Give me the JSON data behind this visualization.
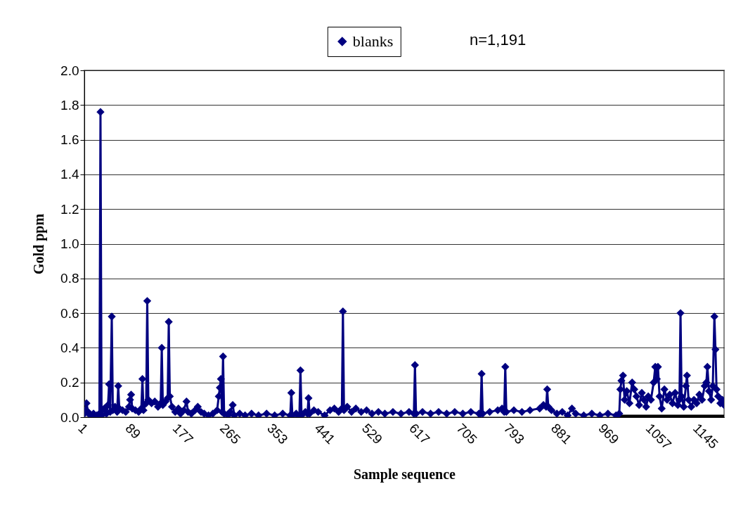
{
  "chart_data": {
    "type": "line",
    "xlabel": "Sample sequence",
    "ylabel": "Gold ppm",
    "annotations": [
      "n=1,191"
    ],
    "xlim": [
      1,
      1191
    ],
    "xticks": [
      1,
      89,
      177,
      265,
      353,
      441,
      529,
      617,
      705,
      793,
      881,
      969,
      1057,
      1145
    ],
    "ylim": [
      0,
      2
    ],
    "yticks": [
      {
        "value": 0,
        "label": "0.0"
      },
      0.2,
      0.4,
      0.6,
      0.8,
      {
        "value": 1,
        "label": "1.0"
      },
      1.2,
      1.4,
      1.6,
      1.8,
      {
        "value": 2,
        "label": "2.0"
      }
    ],
    "grid": "y",
    "legend": "top",
    "marker": "diamond",
    "line_style": "solid",
    "series": [
      {
        "color": "#000000",
        "marker": "none",
        "x": [
          997,
          1191
        ],
        "values": [
          0,
          0
        ]
      },
      {
        "name": "blanks",
        "color": "#000080",
        "x": [
          1,
          3,
          5,
          8,
          12,
          18,
          24,
          29,
          31,
          33,
          38,
          42,
          45,
          47,
          49,
          52,
          54,
          58,
          62,
          64,
          66,
          72,
          78,
          84,
          86,
          88,
          90,
          96,
          102,
          107,
          109,
          111,
          116,
          118,
          120,
          126,
          132,
          138,
          143,
          145,
          147,
          152,
          156,
          158,
          160,
          164,
          170,
          176,
          180,
          186,
          191,
          194,
          200,
          207,
          212,
          218,
          224,
          232,
          240,
          248,
          251,
          253,
          255,
          257,
          259,
          261,
          268,
          272,
          277,
          280,
          290,
          300,
          312,
          325,
          340,
          355,
          370,
          384,
          386,
          388,
          395,
          401,
          403,
          405,
          412,
          416,
          418,
          420,
          428,
          436,
          448,
          458,
          466,
          474,
          480,
          482,
          484,
          490,
          498,
          506,
          516,
          526,
          536,
          548,
          560,
          575,
          590,
          605,
          614,
          616,
          618,
          630,
          645,
          660,
          675,
          690,
          705,
          720,
          735,
          738,
          740,
          742,
          755,
          770,
          778,
          782,
          784,
          786,
          800,
          815,
          830,
          848,
          855,
          860,
          862,
          864,
          870,
          880,
          890,
          900,
          908,
          915,
          930,
          945,
          960,
          975,
          990,
          996,
          998,
          1000,
          1003,
          1006,
          1010,
          1015,
          1020,
          1024,
          1028,
          1033,
          1038,
          1042,
          1046,
          1050,
          1055,
          1060,
          1063,
          1066,
          1068,
          1071,
          1075,
          1080,
          1085,
          1090,
          1095,
          1100,
          1105,
          1108,
          1110,
          1112,
          1116,
          1120,
          1122,
          1125,
          1130,
          1135,
          1140,
          1145,
          1150,
          1155,
          1158,
          1160,
          1163,
          1167,
          1170,
          1173,
          1175,
          1177,
          1180,
          1184,
          1188,
          1191
        ],
        "values": [
          0.02,
          0.04,
          0.08,
          0.03,
          0.01,
          0.02,
          0.01,
          0.02,
          1.76,
          0.01,
          0.05,
          0.02,
          0.07,
          0.19,
          0.03,
          0.58,
          0.04,
          0.06,
          0.03,
          0.18,
          0.05,
          0.04,
          0.03,
          0.06,
          0.1,
          0.13,
          0.05,
          0.04,
          0.03,
          0.05,
          0.22,
          0.04,
          0.08,
          0.67,
          0.1,
          0.08,
          0.09,
          0.06,
          0.08,
          0.4,
          0.07,
          0.09,
          0.11,
          0.55,
          0.12,
          0.06,
          0.03,
          0.05,
          0.02,
          0.04,
          0.09,
          0.03,
          0.02,
          0.04,
          0.06,
          0.03,
          0.02,
          0.01,
          0.02,
          0.04,
          0.12,
          0.17,
          0.22,
          0.03,
          0.35,
          0.02,
          0.01,
          0.03,
          0.07,
          0.01,
          0.02,
          0.01,
          0.02,
          0.01,
          0.02,
          0.01,
          0.02,
          0.01,
          0.14,
          0.01,
          0.02,
          0.01,
          0.27,
          0.01,
          0.03,
          0.02,
          0.11,
          0.02,
          0.04,
          0.03,
          0.01,
          0.04,
          0.05,
          0.03,
          0.05,
          0.61,
          0.04,
          0.06,
          0.03,
          0.05,
          0.03,
          0.04,
          0.02,
          0.03,
          0.02,
          0.03,
          0.02,
          0.03,
          0.02,
          0.3,
          0.02,
          0.03,
          0.02,
          0.03,
          0.02,
          0.03,
          0.02,
          0.03,
          0.02,
          0.02,
          0.25,
          0.02,
          0.03,
          0.04,
          0.05,
          0.03,
          0.29,
          0.03,
          0.04,
          0.03,
          0.04,
          0.05,
          0.07,
          0.06,
          0.16,
          0.06,
          0.04,
          0.02,
          0.03,
          0.01,
          0.05,
          0.02,
          0.01,
          0.02,
          0.01,
          0.02,
          0.01,
          0.02,
          0.16,
          0.21,
          0.24,
          0.1,
          0.15,
          0.08,
          0.2,
          0.16,
          0.12,
          0.07,
          0.14,
          0.1,
          0.06,
          0.12,
          0.1,
          0.2,
          0.29,
          0.22,
          0.29,
          0.12,
          0.05,
          0.16,
          0.1,
          0.13,
          0.08,
          0.14,
          0.07,
          0.1,
          0.6,
          0.12,
          0.06,
          0.18,
          0.24,
          0.1,
          0.06,
          0.1,
          0.08,
          0.13,
          0.1,
          0.18,
          0.2,
          0.29,
          0.15,
          0.1,
          0.18,
          0.58,
          0.39,
          0.16,
          0.12,
          0.08,
          0.1,
          0.07
        ]
      }
    ]
  }
}
